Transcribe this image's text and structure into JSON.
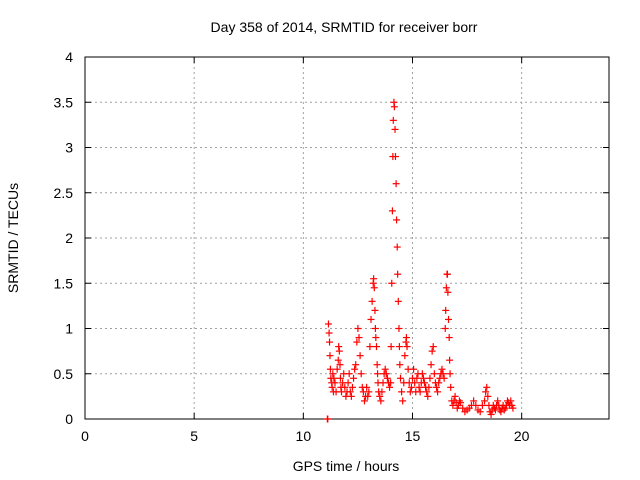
{
  "chart_data": {
    "type": "scatter",
    "title": "Day 358 of 2014, SRMTID for receiver borr",
    "xlabel": "GPS time / hours",
    "ylabel": "SRMTID / TECUs",
    "xlim": [
      0,
      24
    ],
    "ylim": [
      0,
      4
    ],
    "xticks": [
      0,
      5,
      10,
      15,
      20
    ],
    "yticks": [
      0,
      0.5,
      1,
      1.5,
      2,
      2.5,
      3,
      3.5,
      4
    ],
    "xtick_labels": [
      "0",
      "5",
      "10",
      "15",
      "20"
    ],
    "ytick_labels": [
      "0",
      "0.5",
      "1",
      "1.5",
      "2",
      "2.5",
      "3",
      "3.5",
      "4"
    ],
    "grid": true,
    "marker": "+",
    "color": "#ff0000",
    "series": [
      {
        "name": "borr",
        "points": [
          [
            11.1,
            0.0
          ],
          [
            11.12,
            0.0
          ],
          [
            11.15,
            1.05
          ],
          [
            11.18,
            0.95
          ],
          [
            11.2,
            0.85
          ],
          [
            11.22,
            0.7
          ],
          [
            11.24,
            0.55
          ],
          [
            11.26,
            0.45
          ],
          [
            11.3,
            0.4
          ],
          [
            11.32,
            0.35
          ],
          [
            11.35,
            0.5
          ],
          [
            11.38,
            0.3
          ],
          [
            11.4,
            0.45
          ],
          [
            11.45,
            0.4
          ],
          [
            11.5,
            0.3
          ],
          [
            11.55,
            0.55
          ],
          [
            11.6,
            0.65
          ],
          [
            11.62,
            0.8
          ],
          [
            11.65,
            0.75
          ],
          [
            11.68,
            0.6
          ],
          [
            11.7,
            0.45
          ],
          [
            11.72,
            0.35
          ],
          [
            11.75,
            0.3
          ],
          [
            11.8,
            0.4
          ],
          [
            11.85,
            0.5
          ],
          [
            11.9,
            0.35
          ],
          [
            11.95,
            0.25
          ],
          [
            12.0,
            0.3
          ],
          [
            12.05,
            0.4
          ],
          [
            12.1,
            0.5
          ],
          [
            12.15,
            0.3
          ],
          [
            12.2,
            0.25
          ],
          [
            12.25,
            0.35
          ],
          [
            12.3,
            0.45
          ],
          [
            12.35,
            0.55
          ],
          [
            12.4,
            0.6
          ],
          [
            12.45,
            0.85
          ],
          [
            12.5,
            1.0
          ],
          [
            12.55,
            0.9
          ],
          [
            12.6,
            0.7
          ],
          [
            12.65,
            0.5
          ],
          [
            12.7,
            0.35
          ],
          [
            12.75,
            0.3
          ],
          [
            12.8,
            0.2
          ],
          [
            12.85,
            0.25
          ],
          [
            12.9,
            0.35
          ],
          [
            12.95,
            0.25
          ],
          [
            13.0,
            0.3
          ],
          [
            13.05,
            0.8
          ],
          [
            13.1,
            1.1
          ],
          [
            13.15,
            1.3
          ],
          [
            13.2,
            1.5
          ],
          [
            13.22,
            1.55
          ],
          [
            13.25,
            1.45
          ],
          [
            13.28,
            1.2
          ],
          [
            13.3,
            1.0
          ],
          [
            13.32,
            0.9
          ],
          [
            13.35,
            0.8
          ],
          [
            13.38,
            0.6
          ],
          [
            13.4,
            0.5
          ],
          [
            13.42,
            0.4
          ],
          [
            13.45,
            0.3
          ],
          [
            13.5,
            0.25
          ],
          [
            13.55,
            0.2
          ],
          [
            13.6,
            0.3
          ],
          [
            13.65,
            0.4
          ],
          [
            13.7,
            0.5
          ],
          [
            13.75,
            0.55
          ],
          [
            13.8,
            0.5
          ],
          [
            13.85,
            0.45
          ],
          [
            13.9,
            0.4
          ],
          [
            13.95,
            0.35
          ],
          [
            14.0,
            0.4
          ],
          [
            14.02,
            0.8
          ],
          [
            14.05,
            1.5
          ],
          [
            14.08,
            2.3
          ],
          [
            14.1,
            2.9
          ],
          [
            14.12,
            3.3
          ],
          [
            14.15,
            3.5
          ],
          [
            14.17,
            3.45
          ],
          [
            14.2,
            3.2
          ],
          [
            14.22,
            2.9
          ],
          [
            14.25,
            2.6
          ],
          [
            14.27,
            2.2
          ],
          [
            14.3,
            1.9
          ],
          [
            14.32,
            1.6
          ],
          [
            14.35,
            1.3
          ],
          [
            14.38,
            1.0
          ],
          [
            14.4,
            0.8
          ],
          [
            14.42,
            0.6
          ],
          [
            14.45,
            0.45
          ],
          [
            14.5,
            0.3
          ],
          [
            14.55,
            0.2
          ],
          [
            14.6,
            0.4
          ],
          [
            14.65,
            0.7
          ],
          [
            14.7,
            0.85
          ],
          [
            14.72,
            0.9
          ],
          [
            14.75,
            0.8
          ],
          [
            14.8,
            0.55
          ],
          [
            14.85,
            0.4
          ],
          [
            14.9,
            0.3
          ],
          [
            14.95,
            0.35
          ],
          [
            15.0,
            0.45
          ],
          [
            15.05,
            0.55
          ],
          [
            15.1,
            0.4
          ],
          [
            15.15,
            0.3
          ],
          [
            15.2,
            0.45
          ],
          [
            15.25,
            0.5
          ],
          [
            15.3,
            0.35
          ],
          [
            15.35,
            0.3
          ],
          [
            15.4,
            0.4
          ],
          [
            15.45,
            0.5
          ],
          [
            15.5,
            0.45
          ],
          [
            15.55,
            0.4
          ],
          [
            15.6,
            0.35
          ],
          [
            15.65,
            0.3
          ],
          [
            15.7,
            0.25
          ],
          [
            15.75,
            0.35
          ],
          [
            15.8,
            0.45
          ],
          [
            15.85,
            0.6
          ],
          [
            15.9,
            0.75
          ],
          [
            15.95,
            0.8
          ],
          [
            16.0,
            0.5
          ],
          [
            16.05,
            0.4
          ],
          [
            16.1,
            0.35
          ],
          [
            16.15,
            0.3
          ],
          [
            16.2,
            0.4
          ],
          [
            16.25,
            0.45
          ],
          [
            16.3,
            0.5
          ],
          [
            16.35,
            0.55
          ],
          [
            16.4,
            0.5
          ],
          [
            16.45,
            0.45
          ],
          [
            16.5,
            1.0
          ],
          [
            16.52,
            1.2
          ],
          [
            16.55,
            1.45
          ],
          [
            16.58,
            1.6
          ],
          [
            16.6,
            1.6
          ],
          [
            16.62,
            1.4
          ],
          [
            16.65,
            1.1
          ],
          [
            16.68,
            0.9
          ],
          [
            16.7,
            0.65
          ],
          [
            16.72,
            0.5
          ],
          [
            16.75,
            0.35
          ],
          [
            16.8,
            0.2
          ],
          [
            16.85,
            0.15
          ],
          [
            16.9,
            0.2
          ],
          [
            16.95,
            0.25
          ],
          [
            17.0,
            0.18
          ],
          [
            17.05,
            0.12
          ],
          [
            17.1,
            0.15
          ],
          [
            17.15,
            0.2
          ],
          [
            17.2,
            0.18
          ],
          [
            17.3,
            0.12
          ],
          [
            17.4,
            0.08
          ],
          [
            17.5,
            0.1
          ],
          [
            17.6,
            0.12
          ],
          [
            17.7,
            0.15
          ],
          [
            17.8,
            0.2
          ],
          [
            17.9,
            0.15
          ],
          [
            18.0,
            0.1
          ],
          [
            18.1,
            0.08
          ],
          [
            18.2,
            0.15
          ],
          [
            18.3,
            0.2
          ],
          [
            18.35,
            0.3
          ],
          [
            18.4,
            0.35
          ],
          [
            18.45,
            0.25
          ],
          [
            18.5,
            0.15
          ],
          [
            18.55,
            0.08
          ],
          [
            18.6,
            0.05
          ],
          [
            18.65,
            0.1
          ],
          [
            18.7,
            0.15
          ],
          [
            18.75,
            0.12
          ],
          [
            18.8,
            0.1
          ],
          [
            18.85,
            0.15
          ],
          [
            18.9,
            0.2
          ],
          [
            18.95,
            0.15
          ],
          [
            19.0,
            0.1
          ],
          [
            19.05,
            0.08
          ],
          [
            19.1,
            0.12
          ],
          [
            19.15,
            0.15
          ],
          [
            19.2,
            0.1
          ],
          [
            19.25,
            0.12
          ],
          [
            19.3,
            0.15
          ],
          [
            19.35,
            0.2
          ],
          [
            19.4,
            0.18
          ],
          [
            19.45,
            0.15
          ],
          [
            19.5,
            0.2
          ],
          [
            19.55,
            0.15
          ],
          [
            19.6,
            0.12
          ]
        ]
      }
    ]
  }
}
